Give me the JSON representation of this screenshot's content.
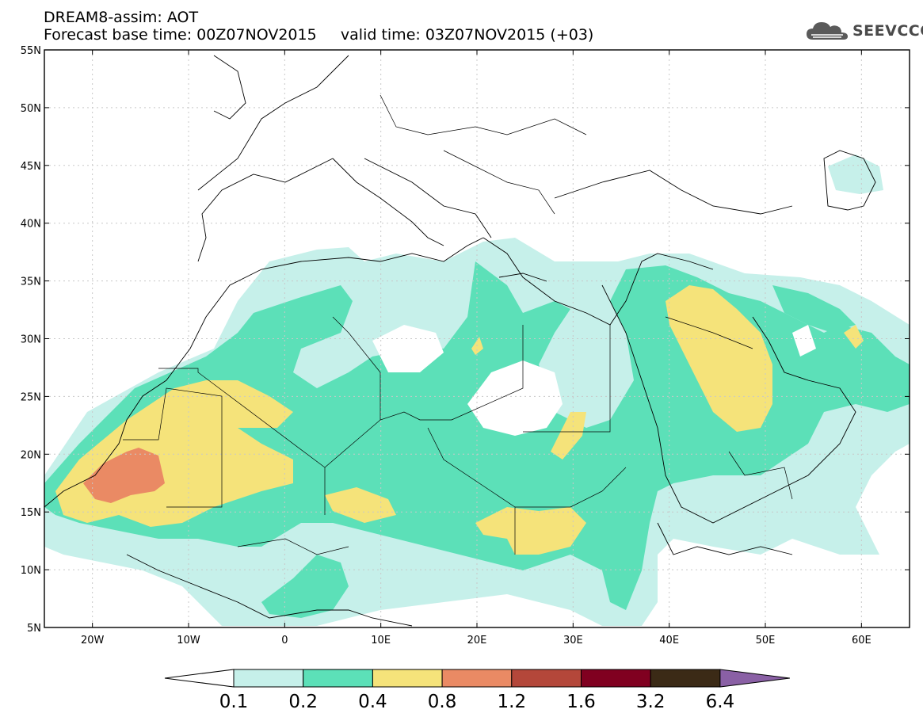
{
  "header": {
    "product": "DREAM8-assim: AOT",
    "base_time_label": "Forecast base time: 00Z07NOV2015",
    "valid_time_label": "valid time: 03Z07NOV2015 (+03)"
  },
  "logo": {
    "text": "SEEVCCC",
    "icon": "cloud-icon"
  },
  "map": {
    "lon_range": [
      -25,
      65
    ],
    "lat_range": [
      5,
      55
    ],
    "lat_labels": [
      "55N",
      "50N",
      "45N",
      "40N",
      "35N",
      "30N",
      "25N",
      "20N",
      "15N",
      "10N",
      "5N"
    ],
    "lon_labels": [
      "20W",
      "10W",
      "0",
      "10E",
      "20E",
      "30E",
      "40E",
      "50E",
      "60E"
    ],
    "grid": "on",
    "field": "Aerosol Optical Thickness"
  },
  "colorbar": {
    "levels": [
      "0.1",
      "0.2",
      "0.4",
      "0.8",
      "1.2",
      "1.6",
      "3.2",
      "6.4"
    ],
    "colors": [
      "#ffffff",
      "#c6f0ea",
      "#5ce0b8",
      "#f5e37a",
      "#ea8a64",
      "#b4473a",
      "#800020",
      "#3b2a16",
      "#8a60a5"
    ]
  }
}
